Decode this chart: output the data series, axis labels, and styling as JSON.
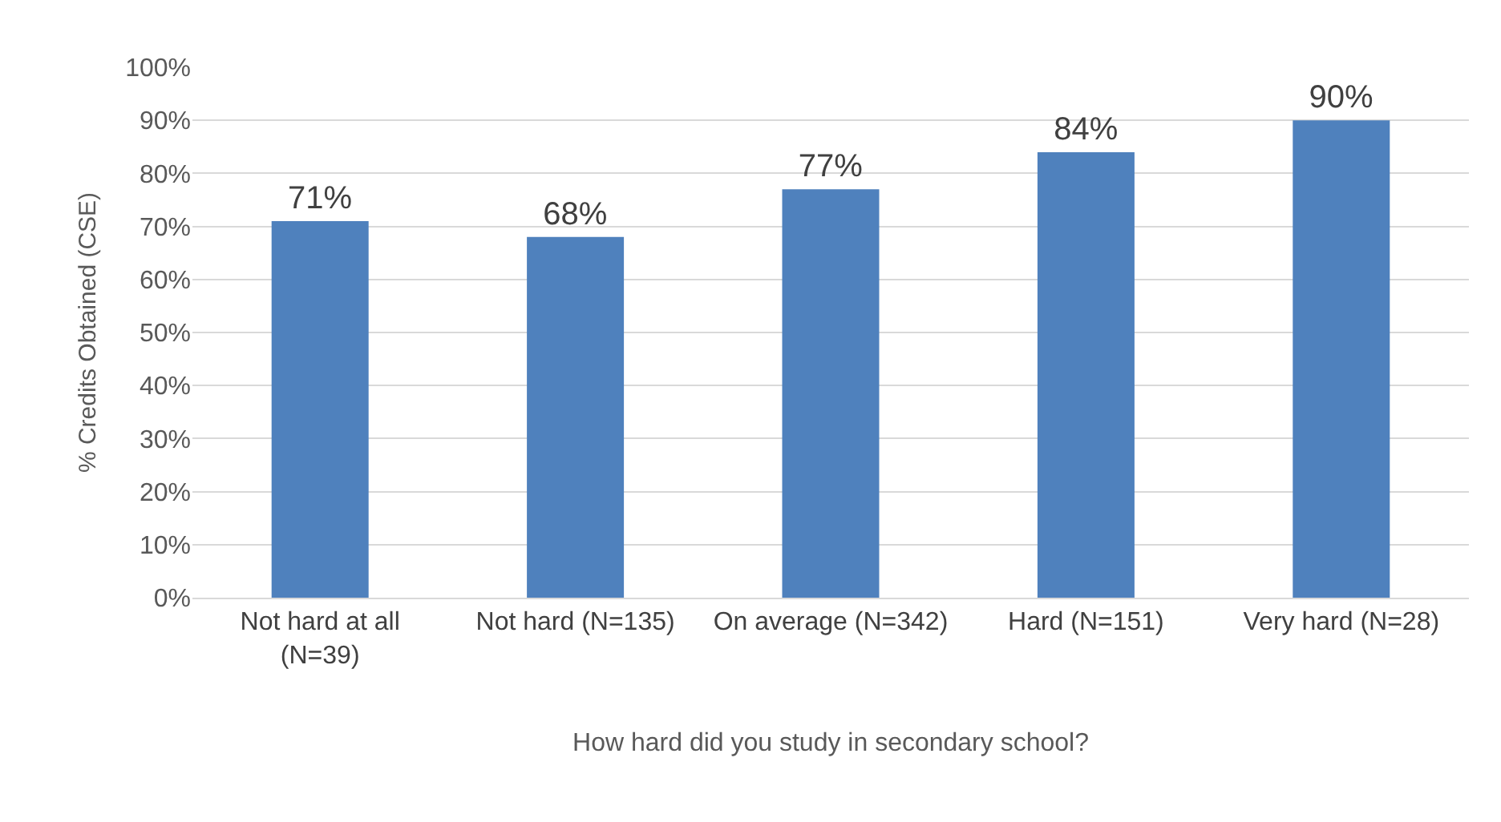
{
  "chart_data": {
    "type": "bar",
    "xlabel": "How hard did you study in secondary school?",
    "ylabel": "% Credits Obtained (CSE)",
    "categories": [
      "Not hard at all\n(N=39)",
      "Not hard (N=135)",
      "On average (N=342)",
      "Hard (N=151)",
      "Very hard (N=28)"
    ],
    "values": [
      71,
      68,
      77,
      84,
      90
    ],
    "value_labels": [
      "71%",
      "68%",
      "77%",
      "84%",
      "90%"
    ],
    "color": "#4f81bd",
    "ylim": [
      0,
      100
    ],
    "yticks": [
      {
        "value": 0,
        "label": "0%"
      },
      {
        "value": 10,
        "label": "10%"
      },
      {
        "value": 20,
        "label": "20%"
      },
      {
        "value": 30,
        "label": "30%"
      },
      {
        "value": 40,
        "label": "40%"
      },
      {
        "value": 50,
        "label": "50%"
      },
      {
        "value": 60,
        "label": "60%"
      },
      {
        "value": 70,
        "label": "70%"
      },
      {
        "value": 80,
        "label": "80%"
      },
      {
        "value": 90,
        "label": "90%"
      },
      {
        "value": 100,
        "label": "100%"
      }
    ],
    "grid": "y"
  }
}
